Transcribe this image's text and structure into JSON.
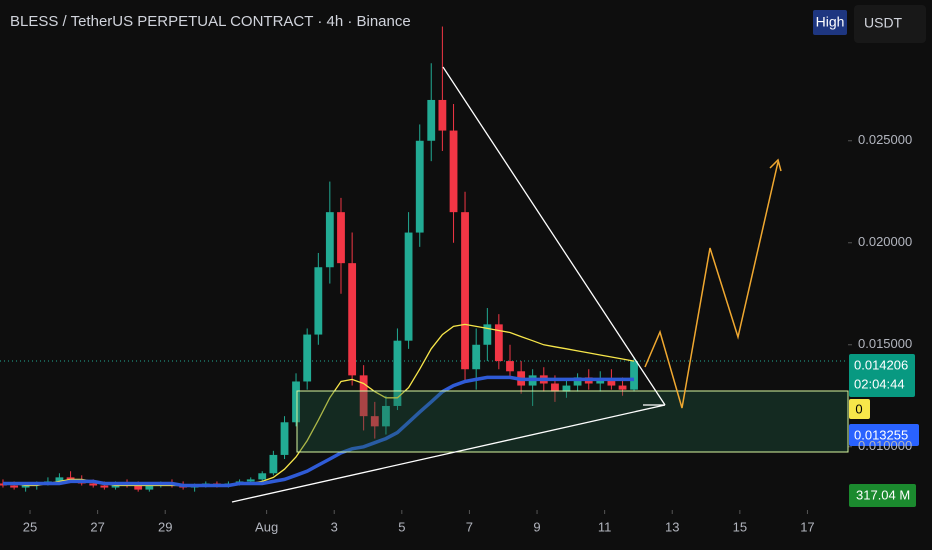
{
  "chart_data": {
    "type": "candlestick",
    "title": "BLESS / TetherUS PERPETUAL CONTRACT · 4h · Binance",
    "toolbar": {
      "high_button": "High",
      "currency": "USDT"
    },
    "up_color": "#22ab94",
    "down_color": "#f23645",
    "xlim": [
      -0.888,
      24.2
    ],
    "ylim": [
      0.0069,
      0.0319
    ],
    "xticks": [
      {
        "value": 0,
        "label": "25"
      },
      {
        "value": 2,
        "label": "27"
      },
      {
        "value": 4,
        "label": "29"
      },
      {
        "value": 7,
        "label": "Aug"
      },
      {
        "value": 9,
        "label": "3"
      },
      {
        "value": 11,
        "label": "5"
      },
      {
        "value": 13,
        "label": "7"
      },
      {
        "value": 15,
        "label": "9"
      },
      {
        "value": 17,
        "label": "11"
      },
      {
        "value": 19,
        "label": "13"
      },
      {
        "value": 21,
        "label": "15"
      },
      {
        "value": 23,
        "label": "17"
      }
    ],
    "yticks": [
      {
        "value": 0.01,
        "label": "0.010000"
      },
      {
        "value": 0.015,
        "label": "0.015000"
      },
      {
        "value": 0.02,
        "label": "0.020000"
      },
      {
        "value": 0.025,
        "label": "0.025000"
      }
    ],
    "x": [
      -0.8,
      -0.47,
      -0.13,
      0.2,
      0.53,
      0.87,
      1.2,
      1.53,
      1.87,
      2.2,
      2.53,
      2.87,
      3.2,
      3.53,
      3.87,
      4.2,
      4.53,
      4.87,
      5.2,
      5.53,
      5.87,
      6.2,
      6.53,
      6.87,
      7.2,
      7.53,
      7.87,
      8.2,
      8.53,
      8.87,
      9.2,
      9.53,
      9.87,
      10.2,
      10.53,
      10.87,
      11.2,
      11.53,
      11.87,
      12.2,
      12.53,
      12.87,
      13.2,
      13.53,
      13.87,
      14.2,
      14.53,
      14.87,
      15.2,
      15.53,
      15.87,
      16.2,
      16.53,
      16.87,
      17.2,
      17.53,
      17.87
    ],
    "open": [
      0.0082,
      0.0081,
      0.008,
      0.0081,
      0.0082,
      0.0083,
      0.0085,
      0.0084,
      0.0082,
      0.0081,
      0.008,
      0.0082,
      0.0081,
      0.0079,
      0.0081,
      0.0082,
      0.0081,
      0.008,
      0.0081,
      0.0082,
      0.0081,
      0.0082,
      0.0083,
      0.0084,
      0.0087,
      0.0096,
      0.0112,
      0.0132,
      0.0155,
      0.0188,
      0.0215,
      0.019,
      0.0135,
      0.0115,
      0.011,
      0.012,
      0.0152,
      0.0205,
      0.025,
      0.027,
      0.0255,
      0.0215,
      0.0138,
      0.015,
      0.016,
      0.0142,
      0.0137,
      0.013,
      0.0135,
      0.0131,
      0.0127,
      0.013,
      0.0134,
      0.0131,
      0.0133,
      0.013,
      0.0128
    ],
    "high": [
      0.0084,
      0.0083,
      0.0082,
      0.0083,
      0.0085,
      0.0087,
      0.0088,
      0.0086,
      0.0084,
      0.0083,
      0.0083,
      0.0084,
      0.0083,
      0.0082,
      0.0083,
      0.0084,
      0.0083,
      0.0082,
      0.0083,
      0.0083,
      0.0083,
      0.0084,
      0.0085,
      0.0088,
      0.0098,
      0.0115,
      0.0136,
      0.0158,
      0.0195,
      0.023,
      0.0222,
      0.0205,
      0.014,
      0.0122,
      0.0125,
      0.0158,
      0.0215,
      0.0258,
      0.0288,
      0.0306,
      0.0268,
      0.0225,
      0.0158,
      0.0168,
      0.0165,
      0.015,
      0.0142,
      0.0138,
      0.0139,
      0.0135,
      0.0133,
      0.0136,
      0.0138,
      0.0137,
      0.0138,
      0.0134,
      0.0144
    ],
    "low": [
      0.008,
      0.0079,
      0.0078,
      0.0079,
      0.0081,
      0.0082,
      0.0083,
      0.0081,
      0.008,
      0.0079,
      0.0079,
      0.008,
      0.0078,
      0.0078,
      0.008,
      0.008,
      0.0079,
      0.0078,
      0.008,
      0.008,
      0.008,
      0.0081,
      0.0082,
      0.0083,
      0.0086,
      0.0094,
      0.011,
      0.0128,
      0.015,
      0.018,
      0.0175,
      0.013,
      0.0108,
      0.0104,
      0.0106,
      0.0118,
      0.0148,
      0.0198,
      0.024,
      0.0245,
      0.02,
      0.0132,
      0.0128,
      0.0142,
      0.0138,
      0.0134,
      0.0126,
      0.012,
      0.0127,
      0.0122,
      0.0124,
      0.0127,
      0.0128,
      0.0127,
      0.0128,
      0.0125,
      0.0127
    ],
    "close": [
      0.0081,
      0.008,
      0.0081,
      0.0082,
      0.0083,
      0.0085,
      0.0084,
      0.0082,
      0.0081,
      0.008,
      0.0082,
      0.0081,
      0.0079,
      0.0081,
      0.0082,
      0.0081,
      0.008,
      0.0081,
      0.0082,
      0.0081,
      0.0082,
      0.0083,
      0.0084,
      0.0087,
      0.0096,
      0.0112,
      0.0132,
      0.0155,
      0.0188,
      0.0215,
      0.019,
      0.0135,
      0.0115,
      0.011,
      0.012,
      0.0152,
      0.0205,
      0.025,
      0.027,
      0.0255,
      0.0215,
      0.0138,
      0.015,
      0.016,
      0.0142,
      0.0137,
      0.013,
      0.0135,
      0.0131,
      0.0127,
      0.013,
      0.0134,
      0.0131,
      0.0133,
      0.013,
      0.0128,
      0.0142
    ],
    "series": [
      {
        "color": "#f7e64a",
        "values": [
          0.0082,
          0.0082,
          0.0081,
          0.0081,
          0.0082,
          0.0083,
          0.0084,
          0.0084,
          0.0083,
          0.0082,
          0.0081,
          0.0081,
          0.0081,
          0.0081,
          0.0081,
          0.0081,
          0.0081,
          0.0081,
          0.0081,
          0.0081,
          0.0081,
          0.0082,
          0.0082,
          0.0083,
          0.0085,
          0.0089,
          0.0095,
          0.0103,
          0.0113,
          0.0124,
          0.0132,
          0.0133,
          0.0131,
          0.0127,
          0.0124,
          0.0124,
          0.0129,
          0.0138,
          0.0148,
          0.0155,
          0.0159,
          0.016,
          0.0159,
          0.0158,
          0.0157,
          0.0156,
          0.0154,
          0.0152,
          0.015,
          0.0149,
          0.0148,
          0.0147,
          0.0146,
          0.0145,
          0.0144,
          0.0143,
          0.0142
        ]
      },
      {
        "color": "#2f5bd6",
        "values": [
          0.0082,
          0.0082,
          0.0082,
          0.0082,
          0.0082,
          0.0082,
          0.0083,
          0.0083,
          0.0083,
          0.0082,
          0.0082,
          0.0082,
          0.0082,
          0.0082,
          0.0082,
          0.0082,
          0.0081,
          0.0081,
          0.0081,
          0.0081,
          0.0081,
          0.0082,
          0.0082,
          0.0082,
          0.0083,
          0.0084,
          0.0086,
          0.0088,
          0.0091,
          0.0094,
          0.0097,
          0.0099,
          0.01,
          0.0102,
          0.0104,
          0.0107,
          0.0112,
          0.0117,
          0.0122,
          0.0127,
          0.013,
          0.0132,
          0.0133,
          0.0134,
          0.0134,
          0.0134,
          0.0133,
          0.0133,
          0.0133,
          0.0133,
          0.0133,
          0.0133,
          0.0133,
          0.0133,
          0.0133,
          0.0133,
          0.0133
        ]
      }
    ],
    "last_price": {
      "value": 0.014206,
      "label": "0.014206"
    },
    "countdown": "02:04:44",
    "alert_tag": "0",
    "ma_tag": {
      "value": 0.013255,
      "label": "0.013255"
    },
    "volume_tag": "317.04 M"
  }
}
